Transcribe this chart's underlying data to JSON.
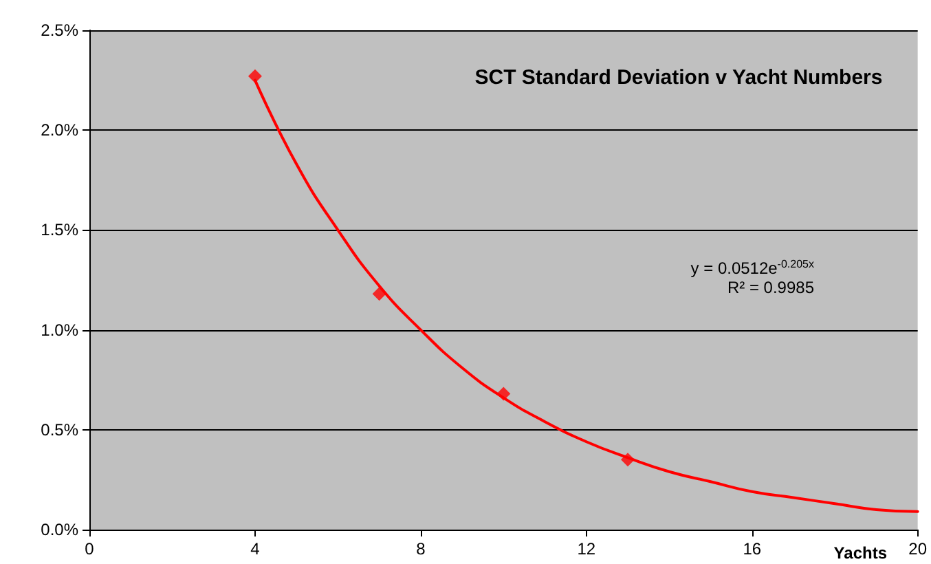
{
  "chart_data": {
    "type": "scatter",
    "title": "SCT Standard Deviation v Yacht Numbers",
    "xlabel": "Yachts",
    "annotations": [
      "y = 0.0512e$^{-0.205x}$",
      "R² = 0.9985"
    ],
    "series": [
      {
        "color": "#ff0000",
        "marker": "diamond",
        "x": [
          4,
          7,
          10,
          13
        ],
        "values": [
          0.0227,
          0.0118,
          0.0068,
          0.0035
        ]
      },
      {
        "type": "line",
        "color": "#ff0000",
        "marker": "none",
        "line_style": "solid",
        "x": [
          4,
          5,
          6,
          7,
          8,
          9,
          10,
          11,
          12,
          13,
          14,
          15,
          16,
          17,
          18,
          19,
          20
        ],
        "values": [
          0.0225,
          0.0183,
          0.015,
          0.0122,
          0.01,
          0.0081,
          0.0066,
          0.0054,
          0.0044,
          0.0036,
          0.0029,
          0.0024,
          0.0019,
          0.0016,
          0.0013,
          0.001,
          0.0009
        ]
      }
    ],
    "xlim": [
      0,
      20
    ],
    "xticks": [
      0,
      4,
      8,
      12,
      16,
      20
    ],
    "ylim": [
      0,
      0.025
    ],
    "yticks": [
      {
        "value": 0,
        "label": "0.0%"
      },
      {
        "value": 0.005,
        "label": "0.5%"
      },
      {
        "value": 0.01,
        "label": "1.0%"
      },
      {
        "value": 0.015,
        "label": "1.5%"
      },
      {
        "value": 0.02,
        "label": "2.0%"
      },
      {
        "value": 0.025,
        "label": "2.5%"
      }
    ],
    "grid": "y"
  }
}
